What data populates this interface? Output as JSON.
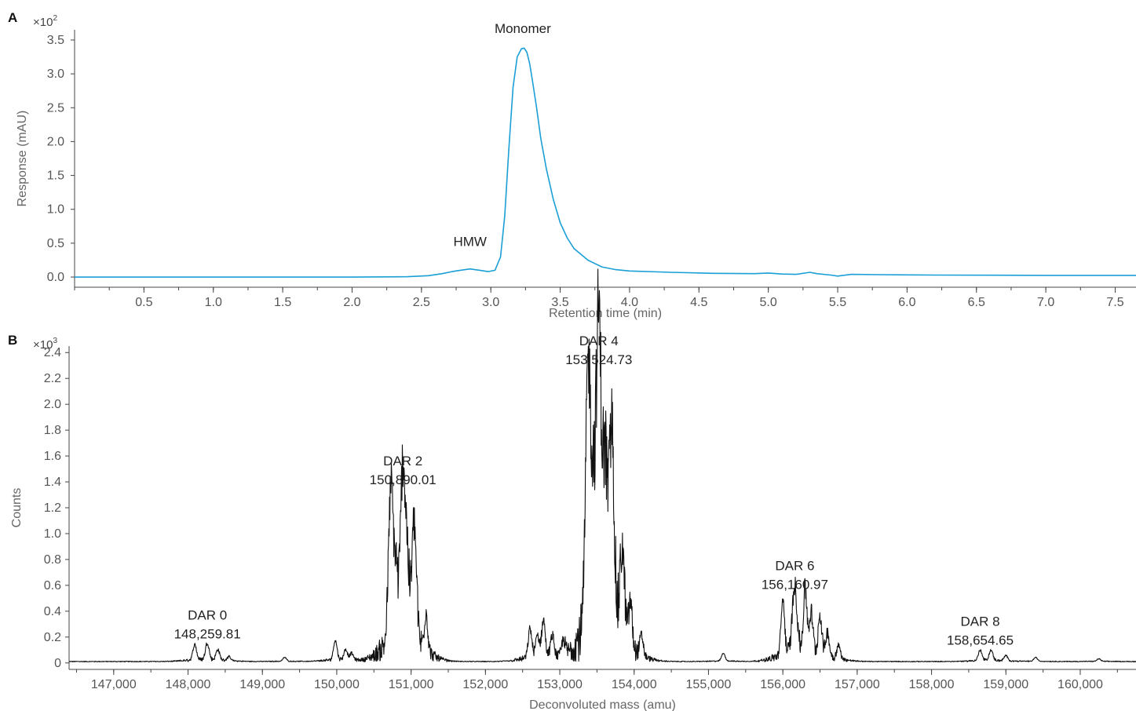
{
  "colors": {
    "panel_a_trace": "#1a9fd6",
    "panel_b_trace": "#111111",
    "axis": "#444444"
  },
  "chart_data": [
    {
      "panel": "A",
      "type": "line",
      "multiplier": {
        "base": "×10",
        "exp": "2"
      },
      "xlabel": "Retention time (min)",
      "ylabel": "Response (mAU)",
      "xlim": [
        0,
        7.65
      ],
      "ylim": [
        -0.15,
        3.65
      ],
      "xticks": [
        0.5,
        1.0,
        1.5,
        2.0,
        2.5,
        3.0,
        3.5,
        4.0,
        4.5,
        5.0,
        5.5,
        6.0,
        6.5,
        7.0,
        7.5
      ],
      "xtick_labels": [
        "0.5",
        "1.0",
        "1.5",
        "2.0",
        "2.5",
        "3.0",
        "3.5",
        "4.0",
        "4.5",
        "5.0",
        "5.5",
        "6.0",
        "6.5",
        "7.0",
        "7.5"
      ],
      "yticks": [
        0,
        0.5,
        1.0,
        1.5,
        2.0,
        2.5,
        3.0,
        3.5
      ],
      "ytick_labels": [
        "0.0",
        "0.5",
        "1.0",
        "1.5",
        "2.0",
        "2.5",
        "3.0",
        "3.5"
      ],
      "series": [
        {
          "x": [
            0,
            0.5,
            1.0,
            1.5,
            2.0,
            2.4,
            2.55,
            2.65,
            2.72,
            2.78,
            2.85,
            2.92,
            2.98,
            3.03,
            3.07,
            3.1,
            3.13,
            3.16,
            3.19,
            3.22,
            3.24,
            3.26,
            3.28,
            3.3,
            3.33,
            3.36,
            3.4,
            3.45,
            3.5,
            3.55,
            3.6,
            3.7,
            3.8,
            3.9,
            4.0,
            4.3,
            4.6,
            4.9,
            5.0,
            5.1,
            5.2,
            5.3,
            5.35,
            5.45,
            5.5,
            5.6,
            5.8,
            6.2,
            7.0,
            7.65
          ],
          "y": [
            0.0,
            0.0,
            0.0,
            0.0,
            0.0,
            0.005,
            0.02,
            0.05,
            0.08,
            0.1,
            0.12,
            0.1,
            0.08,
            0.1,
            0.3,
            0.9,
            1.9,
            2.8,
            3.25,
            3.37,
            3.38,
            3.32,
            3.15,
            2.9,
            2.5,
            2.05,
            1.6,
            1.15,
            0.8,
            0.58,
            0.42,
            0.25,
            0.15,
            0.11,
            0.09,
            0.07,
            0.055,
            0.05,
            0.06,
            0.045,
            0.04,
            0.07,
            0.05,
            0.03,
            0.015,
            0.04,
            0.035,
            0.03,
            0.025,
            0.025
          ]
        }
      ],
      "annotations": [
        {
          "lines": [
            "Monomer"
          ],
          "x": 3.23,
          "y": 3.49
        },
        {
          "lines": [
            "HMW"
          ],
          "x": 2.85,
          "y": 0.34
        }
      ]
    },
    {
      "panel": "B",
      "type": "line",
      "multiplier": {
        "base": "×10",
        "exp": "3"
      },
      "xlabel": "Deconvoluted mass (amu)",
      "ylabel": "Counts",
      "xlim": [
        146400,
        160750
      ],
      "ylim": [
        -0.05,
        2.45
      ],
      "xticks": [
        147000,
        148000,
        149000,
        150000,
        151000,
        152000,
        153000,
        154000,
        155000,
        156000,
        157000,
        158000,
        159000,
        160000
      ],
      "xtick_labels": [
        "147,000",
        "148,000",
        "149,000",
        "150,000",
        "151,000",
        "152,000",
        "153,000",
        "154,000",
        "155,000",
        "156,000",
        "157,000",
        "158,000",
        "159,000",
        "160,000"
      ],
      "yticks": [
        0,
        0.2,
        0.4,
        0.6,
        0.8,
        1.0,
        1.2,
        1.4,
        1.6,
        1.8,
        2.0,
        2.2,
        2.4
      ],
      "ytick_labels": [
        "0",
        "0.2",
        "0.4",
        "0.6",
        "0.8",
        "1.0",
        "1.2",
        "1.4",
        "1.6",
        "1.8",
        "2.0",
        "2.2",
        "2.4"
      ],
      "peaks": [
        [
          148090,
          0.12
        ],
        [
          148259,
          0.13
        ],
        [
          148400,
          0.08
        ],
        [
          148550,
          0.03
        ],
        [
          149300,
          0.03
        ],
        [
          149980,
          0.15
        ],
        [
          150120,
          0.08
        ],
        [
          150200,
          0.05
        ],
        [
          150730,
          1.2
        ],
        [
          150800,
          0.45
        ],
        [
          150890,
          1.32
        ],
        [
          150950,
          0.5
        ],
        [
          151040,
          0.9
        ],
        [
          151200,
          0.3
        ],
        [
          152600,
          0.22
        ],
        [
          152700,
          0.16
        ],
        [
          152780,
          0.28
        ],
        [
          152900,
          0.16
        ],
        [
          153050,
          0.12
        ],
        [
          153380,
          1.95
        ],
        [
          153450,
          0.9
        ],
        [
          153524,
          2.25
        ],
        [
          153610,
          1.2
        ],
        [
          153700,
          1.5
        ],
        [
          153840,
          0.68
        ],
        [
          153950,
          0.35
        ],
        [
          154100,
          0.15
        ],
        [
          155200,
          0.06
        ],
        [
          156000,
          0.42
        ],
        [
          156160,
          0.51
        ],
        [
          156300,
          0.48
        ],
        [
          156380,
          0.3
        ],
        [
          156500,
          0.3
        ],
        [
          156600,
          0.18
        ],
        [
          156750,
          0.1
        ],
        [
          158654,
          0.08
        ],
        [
          158800,
          0.08
        ],
        [
          159000,
          0.04
        ],
        [
          159400,
          0.03
        ],
        [
          160250,
          0.02
        ]
      ],
      "annotations": [
        {
          "lines": [
            "DAR 0",
            "148,259.81"
          ],
          "x": 148259.81,
          "y": 0.13
        },
        {
          "lines": [
            "DAR 2",
            "150,890.01"
          ],
          "x": 150890.01,
          "y": 1.32
        },
        {
          "lines": [
            "DAR 4",
            "153,524.73"
          ],
          "x": 153524.73,
          "y": 2.25
        },
        {
          "lines": [
            "DAR 6",
            "156,160.97"
          ],
          "x": 156160.97,
          "y": 0.51
        },
        {
          "lines": [
            "DAR 8",
            "158,654.65"
          ],
          "x": 158654.65,
          "y": 0.08
        }
      ]
    }
  ]
}
